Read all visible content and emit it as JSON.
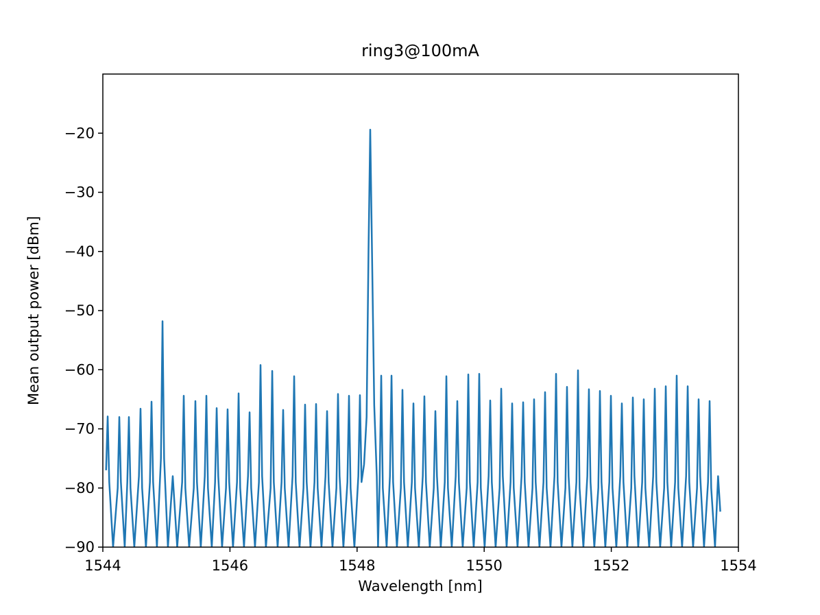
{
  "chart_data": {
    "type": "line",
    "title": "ring3@100mA",
    "x_label": "Wavelength [nm]",
    "y_label": "Mean output power [dBm]",
    "color": "#1f77b4",
    "xlim": [
      1544,
      1554
    ],
    "xticks": [
      1544,
      1546,
      1548,
      1550,
      1552,
      1554
    ],
    "ylim": [
      -90,
      -10
    ],
    "yticks": [
      {
        "value": -90,
        "label": "−90"
      },
      {
        "value": -80,
        "label": "−80"
      },
      {
        "value": -70,
        "label": "−70"
      },
      {
        "value": -60,
        "label": "−60"
      },
      {
        "value": -50,
        "label": "−50"
      },
      {
        "value": -40,
        "label": "−40"
      },
      {
        "value": -30,
        "label": "−30"
      },
      {
        "value": -20,
        "label": "−20"
      }
    ],
    "x": [
      1544.051,
      1544.076,
      1544.101,
      1544.161,
      1544.234,
      1544.259,
      1544.284,
      1544.344,
      1544.385,
      1544.41,
      1544.435,
      1544.495,
      1544.568,
      1544.593,
      1544.618,
      1544.678,
      1544.741,
      1544.766,
      1544.791,
      1544.851,
      1544.914,
      1544.939,
      1544.964,
      1545.024,
      1545.1,
      1545.17,
      1545.248,
      1545.273,
      1545.298,
      1545.358,
      1545.431,
      1545.456,
      1545.481,
      1545.541,
      1545.604,
      1545.629,
      1545.654,
      1545.714,
      1545.766,
      1545.791,
      1545.816,
      1545.876,
      1545.938,
      1545.963,
      1545.988,
      1546.048,
      1546.111,
      1546.136,
      1546.161,
      1546.221,
      1546.284,
      1546.309,
      1546.334,
      1546.394,
      1546.456,
      1546.481,
      1546.506,
      1546.566,
      1546.64,
      1546.665,
      1546.69,
      1546.75,
      1546.812,
      1546.837,
      1546.862,
      1546.922,
      1546.985,
      1547.01,
      1547.035,
      1547.095,
      1547.157,
      1547.182,
      1547.207,
      1547.267,
      1547.33,
      1547.355,
      1547.38,
      1547.44,
      1547.503,
      1547.528,
      1547.553,
      1547.613,
      1547.675,
      1547.7,
      1547.725,
      1547.785,
      1547.848,
      1547.873,
      1547.898,
      1547.958,
      1548.02,
      1548.045,
      1548.07,
      1548.11,
      1548.15,
      1548.18,
      1548.207,
      1548.235,
      1548.27,
      1548.31,
      1548.33,
      1548.355,
      1548.38,
      1548.405,
      1548.465,
      1548.517,
      1548.542,
      1548.567,
      1548.627,
      1548.689,
      1548.714,
      1548.739,
      1548.799,
      1548.862,
      1548.887,
      1548.912,
      1548.972,
      1549.034,
      1549.059,
      1549.084,
      1549.144,
      1549.207,
      1549.232,
      1549.257,
      1549.317,
      1549.38,
      1549.405,
      1549.43,
      1549.49,
      1549.552,
      1549.577,
      1549.602,
      1549.662,
      1549.725,
      1549.75,
      1549.775,
      1549.835,
      1549.897,
      1549.922,
      1549.947,
      1550.007,
      1550.07,
      1550.095,
      1550.12,
      1550.18,
      1550.243,
      1550.268,
      1550.293,
      1550.353,
      1550.415,
      1550.44,
      1550.465,
      1550.525,
      1550.588,
      1550.613,
      1550.638,
      1550.698,
      1550.76,
      1550.785,
      1550.81,
      1550.87,
      1550.933,
      1550.958,
      1550.983,
      1551.043,
      1551.106,
      1551.131,
      1551.156,
      1551.216,
      1551.278,
      1551.303,
      1551.328,
      1551.388,
      1551.451,
      1551.476,
      1551.501,
      1551.561,
      1551.623,
      1551.648,
      1551.673,
      1551.733,
      1551.796,
      1551.821,
      1551.846,
      1551.906,
      1551.969,
      1551.994,
      1552.019,
      1552.079,
      1552.141,
      1552.166,
      1552.191,
      1552.251,
      1552.314,
      1552.339,
      1552.364,
      1552.424,
      1552.486,
      1552.511,
      1552.536,
      1552.596,
      1552.659,
      1552.684,
      1552.709,
      1552.769,
      1552.832,
      1552.857,
      1552.882,
      1552.942,
      1553.004,
      1553.029,
      1553.054,
      1553.114,
      1553.177,
      1553.202,
      1553.227,
      1553.287,
      1553.349,
      1553.374,
      1553.399,
      1553.459,
      1553.522,
      1553.547,
      1553.572,
      1553.632,
      1553.68,
      1553.715
    ],
    "values": [
      -77,
      -67.9,
      -79,
      -90,
      -80,
      -68,
      -79,
      -90,
      -79,
      -68,
      -80,
      -90,
      -78,
      -66.6,
      -80,
      -90,
      -79,
      -65.4,
      -79,
      -90,
      -75,
      -51.8,
      -75,
      -90,
      -78,
      -90,
      -79,
      -64.4,
      -80,
      -90,
      -80,
      -65.3,
      -79,
      -90,
      -78,
      -64.4,
      -80,
      -90,
      -79,
      -66.5,
      -78,
      -90,
      -80,
      -66.7,
      -79,
      -90,
      -79,
      -64,
      -80,
      -90,
      -78,
      -67.2,
      -80,
      -90,
      -79,
      -59.2,
      -78,
      -90,
      -80,
      -60.2,
      -79,
      -90,
      -79,
      -66.8,
      -80,
      -90,
      -78,
      -61.1,
      -79,
      -90,
      -80,
      -65.9,
      -79,
      -90,
      -79,
      -65.8,
      -80,
      -90,
      -78,
      -67,
      -79,
      -90,
      -80,
      -64.1,
      -78,
      -90,
      -79,
      -64.4,
      -80,
      -90,
      -78,
      -64.3,
      -79,
      -76,
      -68,
      -40,
      -19.4,
      -40,
      -66,
      -78,
      -90,
      -79,
      -61,
      -80,
      -90,
      -78,
      -61,
      -79,
      -90,
      -80,
      -63.4,
      -79,
      -90,
      -79,
      -65.7,
      -80,
      -90,
      -78,
      -64.5,
      -79,
      -90,
      -80,
      -67,
      -78,
      -90,
      -79,
      -61.1,
      -80,
      -90,
      -78,
      -65.3,
      -79,
      -90,
      -80,
      -60.8,
      -79,
      -90,
      -79,
      -60.7,
      -80,
      -90,
      -78,
      -65.2,
      -79,
      -90,
      -80,
      -63.2,
      -78,
      -90,
      -79,
      -65.7,
      -80,
      -90,
      -78,
      -65.5,
      -79,
      -90,
      -80,
      -65,
      -79,
      -90,
      -79,
      -63.8,
      -80,
      -90,
      -78,
      -60.7,
      -79,
      -90,
      -80,
      -62.9,
      -78,
      -90,
      -79,
      -60.1,
      -80,
      -90,
      -78,
      -63.3,
      -79,
      -90,
      -80,
      -63.6,
      -79,
      -90,
      -79,
      -64.4,
      -80,
      -90,
      -78,
      -65.7,
      -79,
      -90,
      -80,
      -64.7,
      -78,
      -90,
      -79,
      -65,
      -80,
      -90,
      -78,
      -63.2,
      -79,
      -90,
      -80,
      -62.8,
      -79,
      -90,
      -79,
      -61,
      -80,
      -90,
      -78,
      -62.8,
      -79,
      -90,
      -80,
      -65,
      -78,
      -90,
      -79,
      -65.3,
      -80,
      -90,
      -78,
      -84
    ]
  }
}
